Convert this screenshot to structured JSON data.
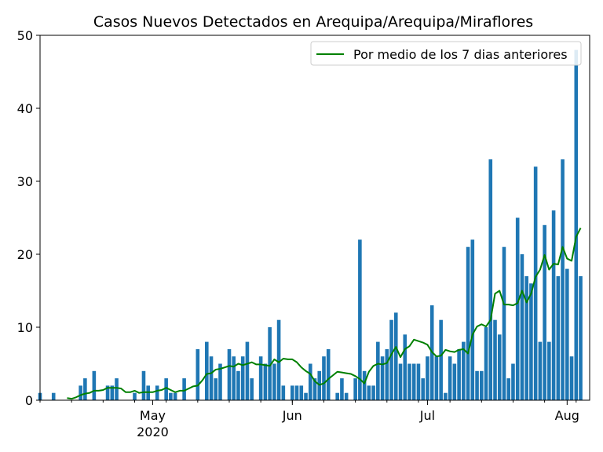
{
  "chart_data": {
    "type": "bar",
    "title": "Casos Nuevos Detectados en Arequipa/Arequipa/Miraflores",
    "xlabel": "",
    "ylabel": "",
    "ylim": [
      0,
      50
    ],
    "yticks": [
      0,
      10,
      20,
      30,
      40,
      50
    ],
    "x_start": "2020-04-06",
    "x_end": "2020-08-06",
    "xticks": [
      {
        "date": "2020-05-01",
        "label": "May",
        "sublabel": "2020"
      },
      {
        "date": "2020-06-01",
        "label": "Jun",
        "sublabel": ""
      },
      {
        "date": "2020-07-01",
        "label": "Jul",
        "sublabel": ""
      },
      {
        "date": "2020-08-01",
        "label": "Aug",
        "sublabel": ""
      }
    ],
    "legend": {
      "position": "top-right",
      "entries": [
        "Por medio de los 7 dias anteriores"
      ]
    },
    "bar_color": "#1f77b4",
    "line_color": "#008000",
    "grid": false,
    "series": [
      {
        "type": "bar",
        "start": "2020-04-06",
        "values": [
          1,
          0,
          0,
          1,
          0,
          0,
          0,
          0,
          0,
          2,
          3,
          0,
          4,
          0,
          0,
          2,
          2,
          3,
          0,
          0,
          0,
          1,
          0,
          4,
          2,
          0,
          2,
          0,
          3,
          1,
          1,
          0,
          3,
          0,
          0,
          7,
          0,
          8,
          6,
          3,
          5,
          0,
          7,
          6,
          4,
          6,
          8,
          3,
          0,
          6,
          5,
          10,
          5,
          11,
          2,
          0,
          2,
          2,
          2,
          1,
          5,
          3,
          4,
          6,
          7,
          0,
          1,
          3,
          1,
          0,
          3,
          22,
          4,
          2,
          2,
          8,
          6,
          7,
          11,
          12,
          5,
          9,
          5,
          5,
          5,
          3,
          6,
          13,
          6,
          11,
          1,
          6,
          5,
          7,
          8,
          21,
          22,
          4,
          4,
          10,
          33,
          11,
          9,
          21,
          3,
          5,
          25,
          20,
          17,
          16,
          32,
          8,
          24,
          8,
          26,
          17,
          33,
          18,
          6,
          48,
          17
        ]
      },
      {
        "type": "line",
        "name": "Por medio de los 7 dias anteriores",
        "start": "2020-04-12",
        "values": [
          0.3,
          0.2,
          0.4,
          0.7,
          0.9,
          1.0,
          1.3,
          1.3,
          1.4,
          1.7,
          1.7,
          1.7,
          1.6,
          1.1,
          1.1,
          1.3,
          1.0,
          1.1,
          1.1,
          1.1,
          1.3,
          1.4,
          1.7,
          1.4,
          1.1,
          1.3,
          1.3,
          1.6,
          1.9,
          2.0,
          2.7,
          3.6,
          3.7,
          4.2,
          4.3,
          4.5,
          4.7,
          4.6,
          5.0,
          4.8,
          5.0,
          5.2,
          4.9,
          4.9,
          4.8,
          4.7,
          5.6,
          5.2,
          5.7,
          5.6,
          5.6,
          5.2,
          4.5,
          4.0,
          3.6,
          2.6,
          2.1,
          2.3,
          2.9,
          3.4,
          3.9,
          3.8,
          3.7,
          3.6,
          3.3,
          2.9,
          2.3,
          3.9,
          4.7,
          5.0,
          4.9,
          5.1,
          6.3,
          7.3,
          5.9,
          7.0,
          7.4,
          8.3,
          8.1,
          7.9,
          7.6,
          6.6,
          6.0,
          6.1,
          6.9,
          6.7,
          6.6,
          6.9,
          7.0,
          6.4,
          9.0,
          10.1,
          10.4,
          10.1,
          11.0,
          14.6,
          15.0,
          13.1,
          13.1,
          13.0,
          13.3,
          15.0,
          13.4,
          14.6,
          16.9,
          17.9,
          19.9,
          17.9,
          18.7,
          18.6,
          21.0,
          19.4,
          19.1,
          22.4,
          23.6
        ]
      }
    ]
  }
}
